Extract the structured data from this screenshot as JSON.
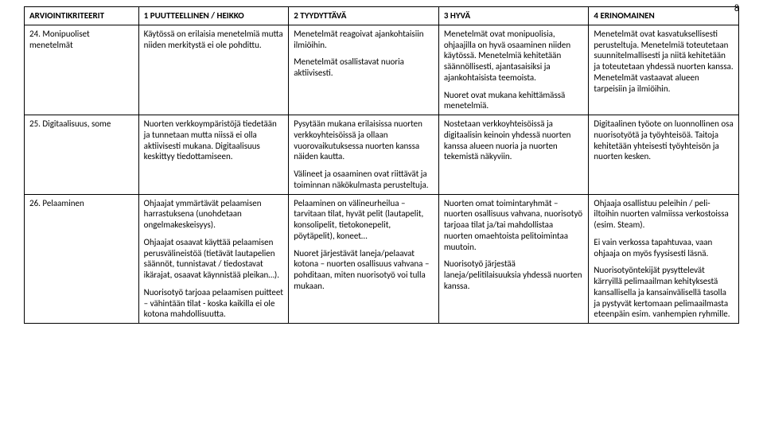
{
  "page_number": "8",
  "table": {
    "headers": [
      "ARVIOINTIKRITEERIT",
      "1 PUUTTEELLINEN / HEIKKO",
      "2 TYYDYTTÄVÄ",
      "3 HYVÄ",
      "4 ERINOMAINEN"
    ],
    "rows": [
      {
        "criterion": "24. Monipuoliset menetelmät",
        "level1": [
          "Käytössä on erilaisia menetelmiä mutta niiden merkitystä ei ole pohdittu."
        ],
        "level2": [
          "Menetelmät reagoivat ajankohtaisiin ilmiöihin.",
          "Menetelmät osallistavat nuoria aktiivisesti."
        ],
        "level3": [
          "Menetelmät ovat monipuolisia, ohjaajilla on hyvä osaaminen niiden käytössä. Menetelmiä kehitetään säännöllisesti, ajantasaisiksi ja ajankohtaisista teemoista.",
          "Nuoret ovat mukana kehittämässä menetelmiä."
        ],
        "level4": [
          "Menetelmät ovat kasvatuksellisesti perusteltuja. Menetelmiä toteutetaan suunnitelmallisesti ja niitä kehitetään ja toteutetaan yhdessä nuorten kanssa. Menetelmät vastaavat alueen tarpeisiin ja ilmiöihin."
        ]
      },
      {
        "criterion": "25. Digitaalisuus, some",
        "level1": [
          "Nuorten verkkoympäristöjä tiedetään ja tunnetaan mutta niissä ei olla aktiivisesti mukana. Digitaalisuus keskittyy tiedottamiseen."
        ],
        "level2": [
          "Pysytään mukana erilaisissa nuorten verkkoyhteisöissä ja ollaan vuorovaikutuksessa nuorten kanssa näiden kautta.",
          "Välineet ja osaaminen ovat riittävät ja toiminnan näkökulmasta perusteltuja."
        ],
        "level3": [
          "Nostetaan verkkoyhteisöissä ja digitaalisin keinoin yhdessä nuorten kanssa alueen nuoria ja nuorten tekemistä näkyviin."
        ],
        "level4": [
          "Digitaalinen työote on luonnollinen osa nuorisotyötä ja työyhteisöä. Taitoja kehitetään yhteisesti työyhteisön ja nuorten kesken."
        ]
      },
      {
        "criterion": "26. Pelaaminen",
        "level1": [
          "Ohjaajat ymmärtävät pelaamisen harrastuksena (unohdetaan ongelmakeskeisyys).",
          "Ohjaajat osaavat käyttää pelaamisen perusvälineistöä (tietävät lautapelien säännöt, tunnistavat / tiedostavat ikärajat, osaavat käynnistää pleikan…).",
          "Nuorisotyö tarjoaa pelaamisen puitteet – vähintään tilat - koska kaikilla ei ole kotona mahdollisuutta."
        ],
        "level2": [
          "Pelaaminen on välineurheilua – tarvitaan tilat, hyvät pelit (lautapelit, konsolipelit, tietokonepelit, pöytäpelit), koneet…",
          "Nuoret järjestävät laneja/pelaavat kotona – nuorten osallisuus vahvana – pohditaan, miten nuorisotyö voi tulla mukaan."
        ],
        "level3": [
          "Nuorten omat toimintaryhmät – nuorten osallisuus vahvana, nuorisotyö tarjoaa tilat ja/tai mahdollistaa nuorten omaehtoista pelitoimintaa muutoin.",
          "Nuorisotyö järjestää laneja/pelitilaisuuksia yhdessä nuorten kanssa."
        ],
        "level4": [
          "Ohjaaja osallistuu peleihin / peli-iltoihin nuorten valmiissa verkostoissa (esim. Steam).",
          "Ei vain verkossa tapahtuvaa, vaan ohjaaja on myös fyysisesti läsnä.",
          "Nuorisotyöntekijät pysyttelevät kärryillä pelimaailman kehityksestä kansallisella ja kansainvälisellä tasolla ja pystyvät kertomaan pelimaailmasta eteenpäin esim. vanhempien ryhmille."
        ]
      }
    ]
  }
}
